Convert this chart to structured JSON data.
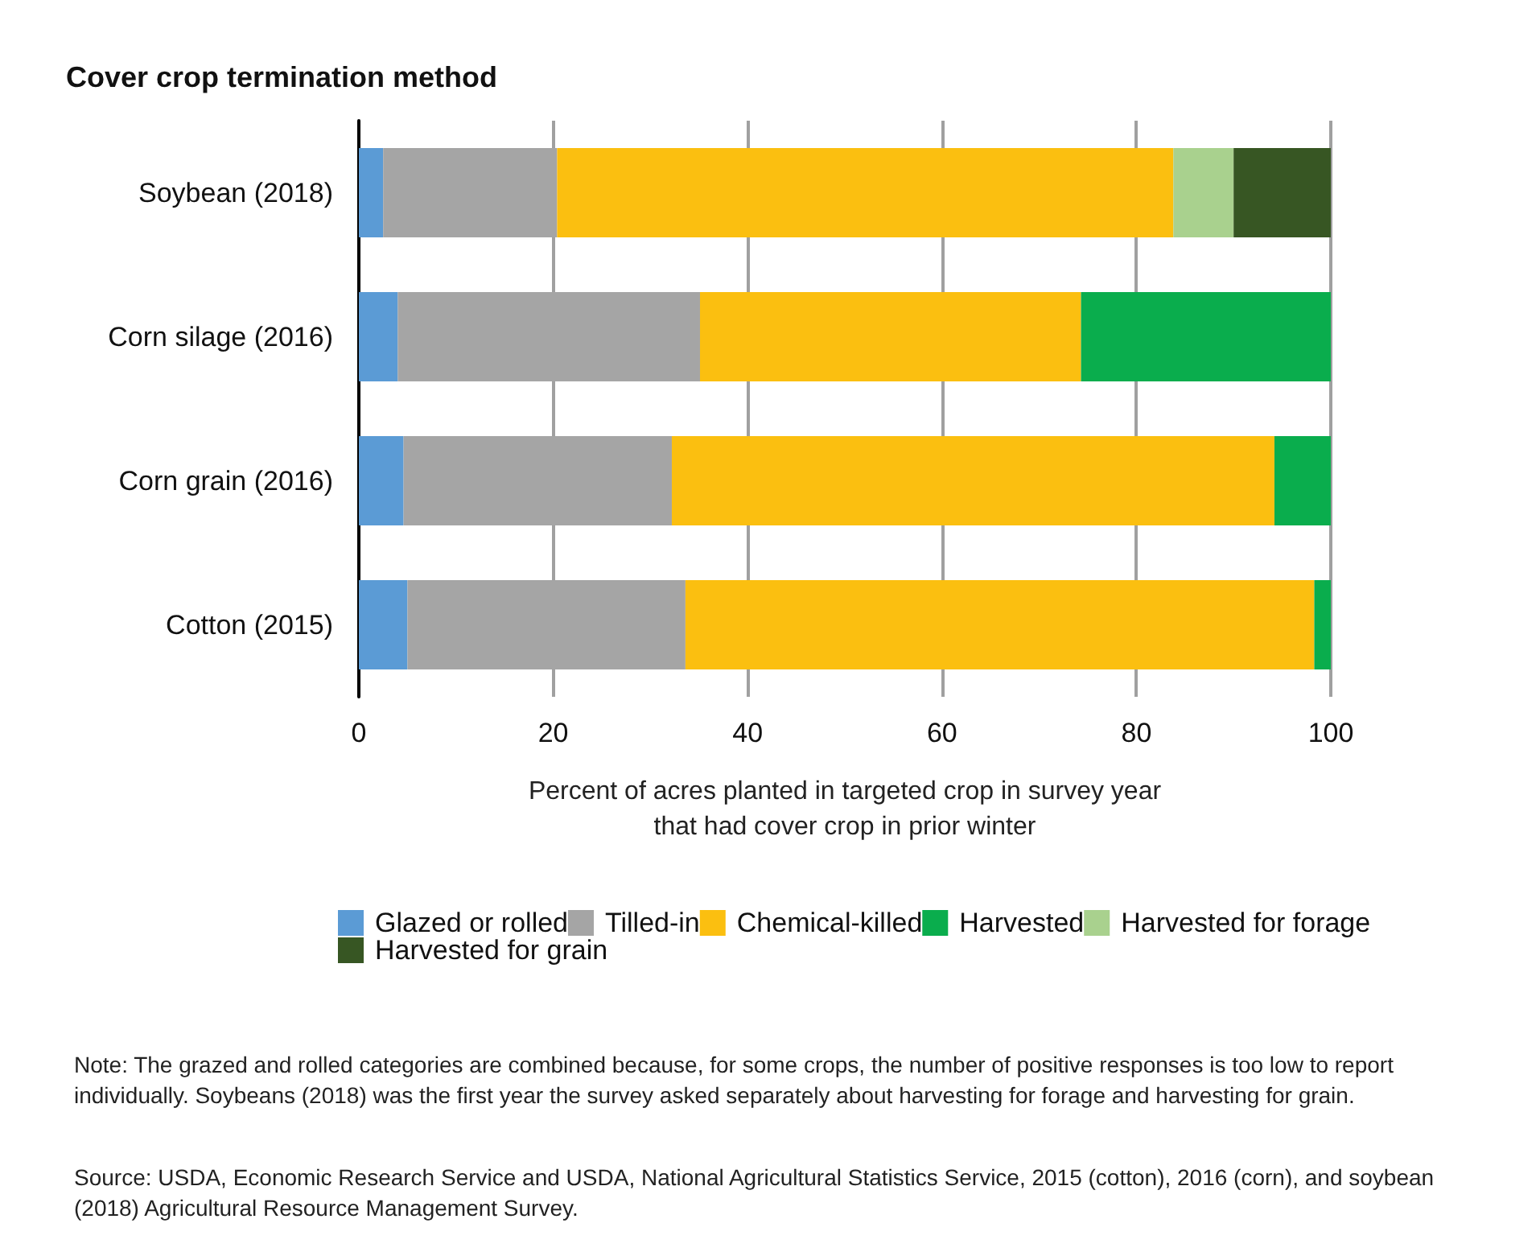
{
  "chart_data": {
    "type": "bar",
    "title": "Cover crop termination method",
    "xlabel": "Percent of acres planted in targeted crop in survey year\nthat had cover crop in prior winter",
    "orientation": "horizontal",
    "stacked": true,
    "categories": [
      "Soybean (2018)",
      "Corn silage (2016)",
      "Corn grain (2016)",
      "Cotton (2015)"
    ],
    "series": [
      {
        "name": "Glazed or rolled",
        "color": "#5b9bd5",
        "values": [
          2.5,
          4.0,
          4.6,
          5.0
        ]
      },
      {
        "name": "Tilled-in",
        "color": "#a5a5a5",
        "values": [
          17.9,
          31.1,
          27.6,
          28.6
        ]
      },
      {
        "name": "Chemical-killed",
        "color": "#fbbf10",
        "values": [
          63.4,
          39.2,
          62.0,
          64.7
        ]
      },
      {
        "name": "Harvested",
        "color": "#0aad4d",
        "values": [
          null,
          25.7,
          5.8,
          1.7
        ]
      },
      {
        "name": "Harvested for forage",
        "color": "#a9d18e",
        "values": [
          6.2,
          null,
          null,
          null
        ]
      },
      {
        "name": "Harvested for grain",
        "color": "#375623",
        "values": [
          10.0,
          null,
          null,
          null
        ]
      }
    ],
    "xlim": [
      0,
      100
    ],
    "xticks": [
      0,
      20,
      40,
      60,
      80,
      100
    ],
    "grid": "x",
    "legend": "bottom",
    "annotations": [
      "Note: The grazed and rolled categories are combined because, for some crops, the number of positive responses is too low to report individually. Soybeans (2018) was the first year the survey asked separately about harvesting for forage and harvesting for grain.",
      "Source: USDA, Economic Research Service and USDA, National Agricultural Statistics Service, 2015 (cotton), 2016 (corn), and soybean (2018) Agricultural Resource Management Survey."
    ]
  }
}
